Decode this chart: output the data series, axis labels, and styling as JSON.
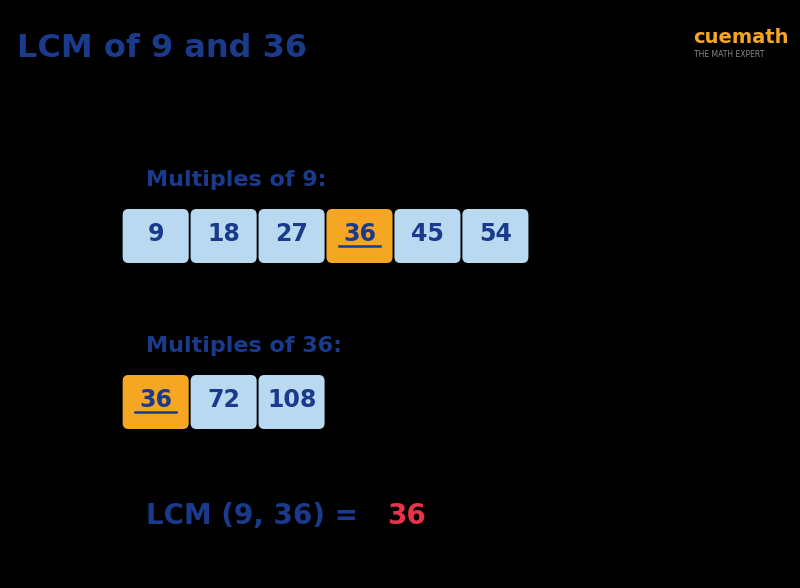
{
  "title": "LCM of 9 and 36",
  "title_color": "#1a3a8c",
  "bg_color": "#000000",
  "multiples_9_label": "Multiples of 9:",
  "multiples_36_label": "Multiples of 36:",
  "multiples_9": [
    "9",
    "18",
    "27",
    "36",
    "45",
    "54"
  ],
  "multiples_36": [
    "36",
    "72",
    "108"
  ],
  "highlight_9_index": 3,
  "highlight_36_index": 0,
  "highlight_color": "#f5a623",
  "normal_box_color": "#b8d9f0",
  "box_text_color": "#1a3a8c",
  "label_color": "#1a3a8c",
  "lcm_result_label": "LCM (9, 36) = ",
  "lcm_result_value": "36",
  "lcm_label_color": "#1a3a8c",
  "lcm_value_color": "#e8334a",
  "fig_width": 8.0,
  "fig_height": 5.88,
  "dpi": 100
}
